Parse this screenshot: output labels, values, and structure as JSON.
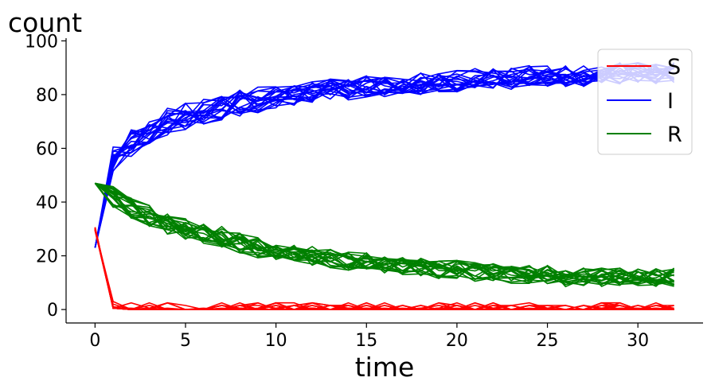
{
  "chart_data": {
    "type": "line",
    "title": "",
    "xlabel": "time",
    "ylabel": "count",
    "xlim": [
      -1.6,
      33.6
    ],
    "ylim": [
      -5,
      101
    ],
    "xticks": [
      0,
      5,
      10,
      15,
      20,
      25,
      30
    ],
    "yticks": [
      0,
      20,
      40,
      60,
      80,
      100
    ],
    "grid": false,
    "legend_position": "top-right",
    "legend": [
      {
        "name": "S",
        "color": "#ff0000"
      },
      {
        "name": "I",
        "color": "#0000ff"
      },
      {
        "name": "R",
        "color": "#008000"
      }
    ],
    "runs": 20,
    "x": [
      0,
      1,
      2,
      3,
      4,
      5,
      6,
      7,
      8,
      9,
      10,
      11,
      12,
      13,
      14,
      15,
      16,
      17,
      18,
      19,
      20,
      21,
      22,
      23,
      24,
      25,
      26,
      27,
      28,
      29,
      30,
      31,
      32
    ],
    "series": [
      {
        "name": "S",
        "color": "#ff0000",
        "note": "typical trajectory of each of the 20 runs",
        "values": [
          30,
          1,
          0.5,
          0.5,
          0.5,
          0.5,
          0.5,
          0.5,
          0.5,
          0.5,
          0.5,
          0.5,
          0.5,
          0.5,
          0.5,
          0.5,
          0.5,
          0.5,
          0.5,
          0.5,
          0.5,
          0.5,
          0.5,
          0.5,
          0.5,
          0.5,
          0.5,
          0.5,
          0.5,
          0.5,
          0.5,
          0.5,
          0.5
        ]
      },
      {
        "name": "I",
        "color": "#0000ff",
        "note": "typical trajectory of each of the 20 runs",
        "values": [
          23,
          56,
          62,
          66,
          70,
          72,
          74,
          75,
          77,
          78,
          79,
          80,
          81,
          82,
          82,
          83,
          83,
          84,
          84,
          85,
          85,
          86,
          86,
          86,
          87,
          87,
          87,
          87,
          88,
          88,
          88,
          88,
          88
        ]
      },
      {
        "name": "R",
        "color": "#008000",
        "note": "typical trajectory of each of the 20 runs",
        "values": [
          47,
          42,
          38,
          35,
          32,
          30,
          28,
          27,
          25,
          23,
          22,
          21,
          20,
          19,
          18,
          18,
          17,
          16,
          16,
          15,
          15,
          14,
          14,
          13,
          13,
          13,
          12,
          12,
          12,
          12,
          12,
          12,
          12
        ]
      }
    ]
  }
}
